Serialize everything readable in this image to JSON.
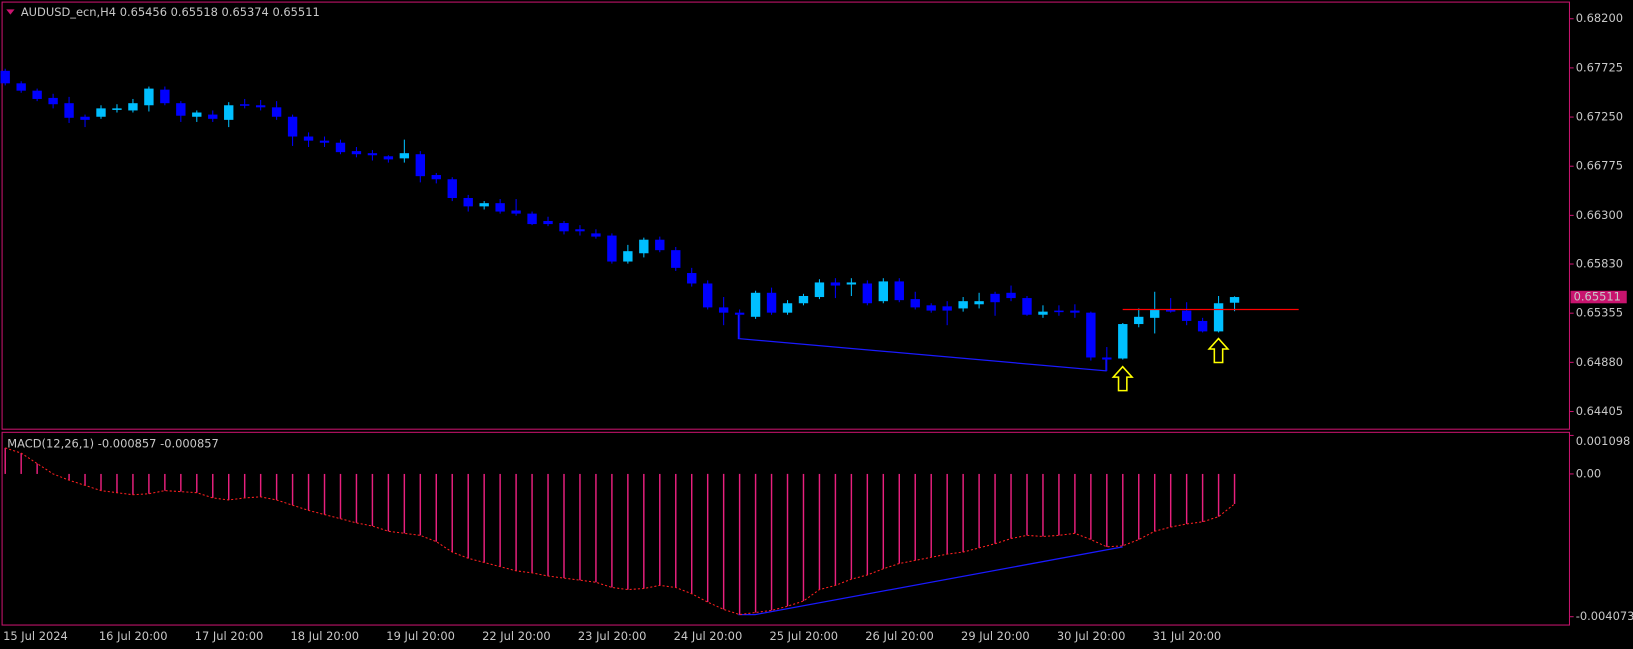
{
  "chart_data": [
    {
      "type": "candlestick",
      "title": "AUDUSD_ecn,H4  0.65456 0.65518 0.65374 0.65511",
      "categories": [
        "15 Jul 2024",
        null,
        null,
        null,
        null,
        null,
        "16 Jul 20:00",
        null,
        null,
        null,
        null,
        null,
        "17 Jul 20:00",
        null,
        null,
        null,
        null,
        null,
        "18 Jul 20:00",
        null,
        null,
        null,
        null,
        null,
        "19 Jul 20:00",
        null,
        null,
        null,
        null,
        null,
        "22 Jul 20:00",
        null,
        null,
        null,
        null,
        null,
        "23 Jul 20:00",
        null,
        null,
        null,
        null,
        null,
        "24 Jul 20:00",
        null,
        null,
        null,
        null,
        null,
        "25 Jul 20:00",
        null,
        null,
        null,
        null,
        null,
        "26 Jul 20:00",
        null,
        null,
        null,
        null,
        null,
        "29 Jul 20:00",
        null,
        null,
        null,
        null,
        null,
        "30 Jul 20:00",
        null,
        null,
        null,
        null,
        null,
        "31 Jul 20:00",
        null,
        null,
        null,
        null,
        null
      ],
      "open": [
        0.67697,
        0.67576,
        0.67505,
        0.67435,
        0.67384,
        0.67253,
        0.67253,
        0.67324,
        0.67314,
        0.67364,
        0.67515,
        0.67384,
        0.67253,
        0.67274,
        0.67223,
        0.67374,
        0.67364,
        0.67344,
        0.67253,
        0.67062,
        0.67022,
        0.67002,
        0.66921,
        0.66901,
        0.66871,
        0.66851,
        0.66891,
        0.6669,
        0.66649,
        0.66468,
        0.66387,
        0.66418,
        0.66347,
        0.66317,
        0.66246,
        0.66226,
        0.66166,
        0.66126,
        0.66105,
        0.65854,
        0.65934,
        0.66065,
        0.65964,
        0.65743,
        0.65642,
        0.65411,
        0.6536,
        0.6532,
        0.65552,
        0.6536,
        0.65451,
        0.65511,
        0.65652,
        0.65632,
        0.65642,
        0.65471,
        0.65662,
        0.65491,
        0.65431,
        0.65421,
        0.65401,
        0.65441,
        0.65542,
        0.65552,
        0.65501,
        0.6534,
        0.6538,
        0.6538,
        0.6536,
        0.64927,
        0.64917,
        0.6525,
        0.6531,
        0.65391,
        0.6538,
        0.6528,
        0.65179,
        0.65456
      ],
      "high": [
        0.67717,
        0.67596,
        0.67525,
        0.67475,
        0.67445,
        0.67274,
        0.67364,
        0.67374,
        0.67425,
        0.67545,
        0.67545,
        0.67404,
        0.67314,
        0.67314,
        0.67394,
        0.67425,
        0.67415,
        0.67404,
        0.67274,
        0.67102,
        0.67062,
        0.67032,
        0.66961,
        0.66931,
        0.66881,
        0.67032,
        0.66921,
        0.6671,
        0.66669,
        0.66498,
        0.66438,
        0.66458,
        0.66458,
        0.66337,
        0.66287,
        0.66246,
        0.66206,
        0.66166,
        0.66126,
        0.66015,
        0.66085,
        0.66095,
        0.65995,
        0.65793,
        0.65672,
        0.65511,
        0.65391,
        0.65572,
        0.65602,
        0.65481,
        0.65542,
        0.65683,
        0.65693,
        0.65693,
        0.65672,
        0.65693,
        0.65693,
        0.65562,
        0.65451,
        0.65471,
        0.65511,
        0.65552,
        0.65562,
        0.65622,
        0.65521,
        0.65431,
        0.65431,
        0.65441,
        0.6537,
        0.65028,
        0.6526,
        0.65401,
        0.65562,
        0.65501,
        0.65461,
        0.6531,
        0.65521,
        0.65518
      ],
      "low": [
        0.67556,
        0.67485,
        0.67404,
        0.67334,
        0.67193,
        0.67153,
        0.67233,
        0.67294,
        0.67294,
        0.67304,
        0.67364,
        0.67203,
        0.67203,
        0.67203,
        0.67153,
        0.67334,
        0.67314,
        0.67223,
        0.66971,
        0.66961,
        0.66961,
        0.66891,
        0.66861,
        0.6683,
        0.6681,
        0.6681,
        0.66619,
        0.66609,
        0.66438,
        0.66337,
        0.66357,
        0.66317,
        0.66297,
        0.66206,
        0.66196,
        0.66116,
        0.66105,
        0.66075,
        0.65834,
        0.65834,
        0.65894,
        0.65944,
        0.65763,
        0.65612,
        0.65391,
        0.65239,
        0.65109,
        0.653,
        0.6534,
        0.6534,
        0.65431,
        0.65491,
        0.65501,
        0.65521,
        0.65431,
        0.65451,
        0.65461,
        0.65391,
        0.6536,
        0.65239,
        0.6537,
        0.65401,
        0.6533,
        0.65471,
        0.6533,
        0.6531,
        0.6533,
        0.6531,
        0.64897,
        0.64796,
        0.64907,
        0.65219,
        0.65159,
        0.6536,
        0.65239,
        0.65169,
        0.65169,
        0.65374
      ],
      "close": [
        0.67576,
        0.67505,
        0.67425,
        0.67374,
        0.67243,
        0.67223,
        0.67334,
        0.67334,
        0.67384,
        0.67525,
        0.67384,
        0.67263,
        0.67294,
        0.67233,
        0.67364,
        0.67364,
        0.67344,
        0.67253,
        0.67062,
        0.67022,
        0.67002,
        0.66911,
        0.66891,
        0.66881,
        0.66841,
        0.66901,
        0.66679,
        0.66649,
        0.66468,
        0.66387,
        0.66418,
        0.66337,
        0.66317,
        0.66216,
        0.66216,
        0.66146,
        0.66146,
        0.66095,
        0.65854,
        0.65954,
        0.66065,
        0.65964,
        0.65793,
        0.65642,
        0.65411,
        0.6536,
        0.6534,
        0.65552,
        0.6536,
        0.65451,
        0.65521,
        0.65652,
        0.65622,
        0.65652,
        0.65451,
        0.65662,
        0.65481,
        0.65411,
        0.6538,
        0.6538,
        0.65471,
        0.65471,
        0.65461,
        0.65501,
        0.6534,
        0.6537,
        0.6537,
        0.6536,
        0.64927,
        0.64907,
        0.6525,
        0.6532,
        0.65391,
        0.6537,
        0.6528,
        0.65179,
        0.65451,
        0.65511
      ],
      "up_color": "#00bfff",
      "down_color": "#0000ff",
      "level": 0.65391,
      "level_color": "#ff0000",
      "ylim": [
        0.64234,
        0.68361
      ],
      "yticks": [
        {
          "value": 0.682,
          "label": "0.68200"
        },
        {
          "value": 0.67725,
          "label": "0.67725"
        },
        {
          "value": 0.6725,
          "label": "0.67250"
        },
        {
          "value": 0.66775,
          "label": "0.66775"
        },
        {
          "value": 0.663,
          "label": "0.66300"
        },
        {
          "value": 0.6583,
          "label": "0.65830"
        },
        {
          "value": 0.65355,
          "label": "0.65355"
        },
        {
          "value": 0.6488,
          "label": "0.64880"
        },
        {
          "value": 0.64405,
          "label": "0.64405"
        }
      ]
    },
    {
      "type": "histogram",
      "title": "MACD(12,26,1) -0.000857 -0.000857",
      "values": [
        0.000743,
        0.000594,
        0.000297,
        0,
        -0.000178,
        -0.000327,
        -0.000476,
        -0.000535,
        -0.000594,
        -0.000565,
        -0.000476,
        -0.000505,
        -0.000535,
        -0.000684,
        -0.000743,
        -0.000684,
        -0.000654,
        -0.000743,
        -0.000892,
        -0.00104,
        -0.001159,
        -0.001278,
        -0.001397,
        -0.001486,
        -0.001635,
        -0.001694,
        -0.001753,
        -0.001932,
        -0.002229,
        -0.002407,
        -0.002526,
        -0.002645,
        -0.002764,
        -0.002823,
        -0.002913,
        -0.002972,
        -0.003031,
        -0.003091,
        -0.003239,
        -0.003299,
        -0.003269,
        -0.00318,
        -0.003239,
        -0.003418,
        -0.003656,
        -0.003864,
        -0.004012,
        -0.003953,
        -0.003893,
        -0.003774,
        -0.003626,
        -0.003299,
        -0.00318,
        -0.003002,
        -0.002883,
        -0.002705,
        -0.002556,
        -0.002467,
        -0.002378,
        -0.002288,
        -0.002229,
        -0.00211,
        -0.001991,
        -0.001843,
        -0.001753,
        -0.001783,
        -0.001753,
        -0.001694,
        -0.001872,
        -0.00208,
        -0.002051,
        -0.001872,
        -0.001635,
        -0.001516,
        -0.001427,
        -0.001367,
        -0.001219,
        -0.000857
      ],
      "color": "#e8207e",
      "signal_color": "#ff2020",
      "ylim": [
        -0.004073,
        0.001098
      ],
      "yticks": [
        0.001098,
        {
          "value": 0,
          "label": "0.00"
        },
        -0.004073
      ]
    }
  ]
}
